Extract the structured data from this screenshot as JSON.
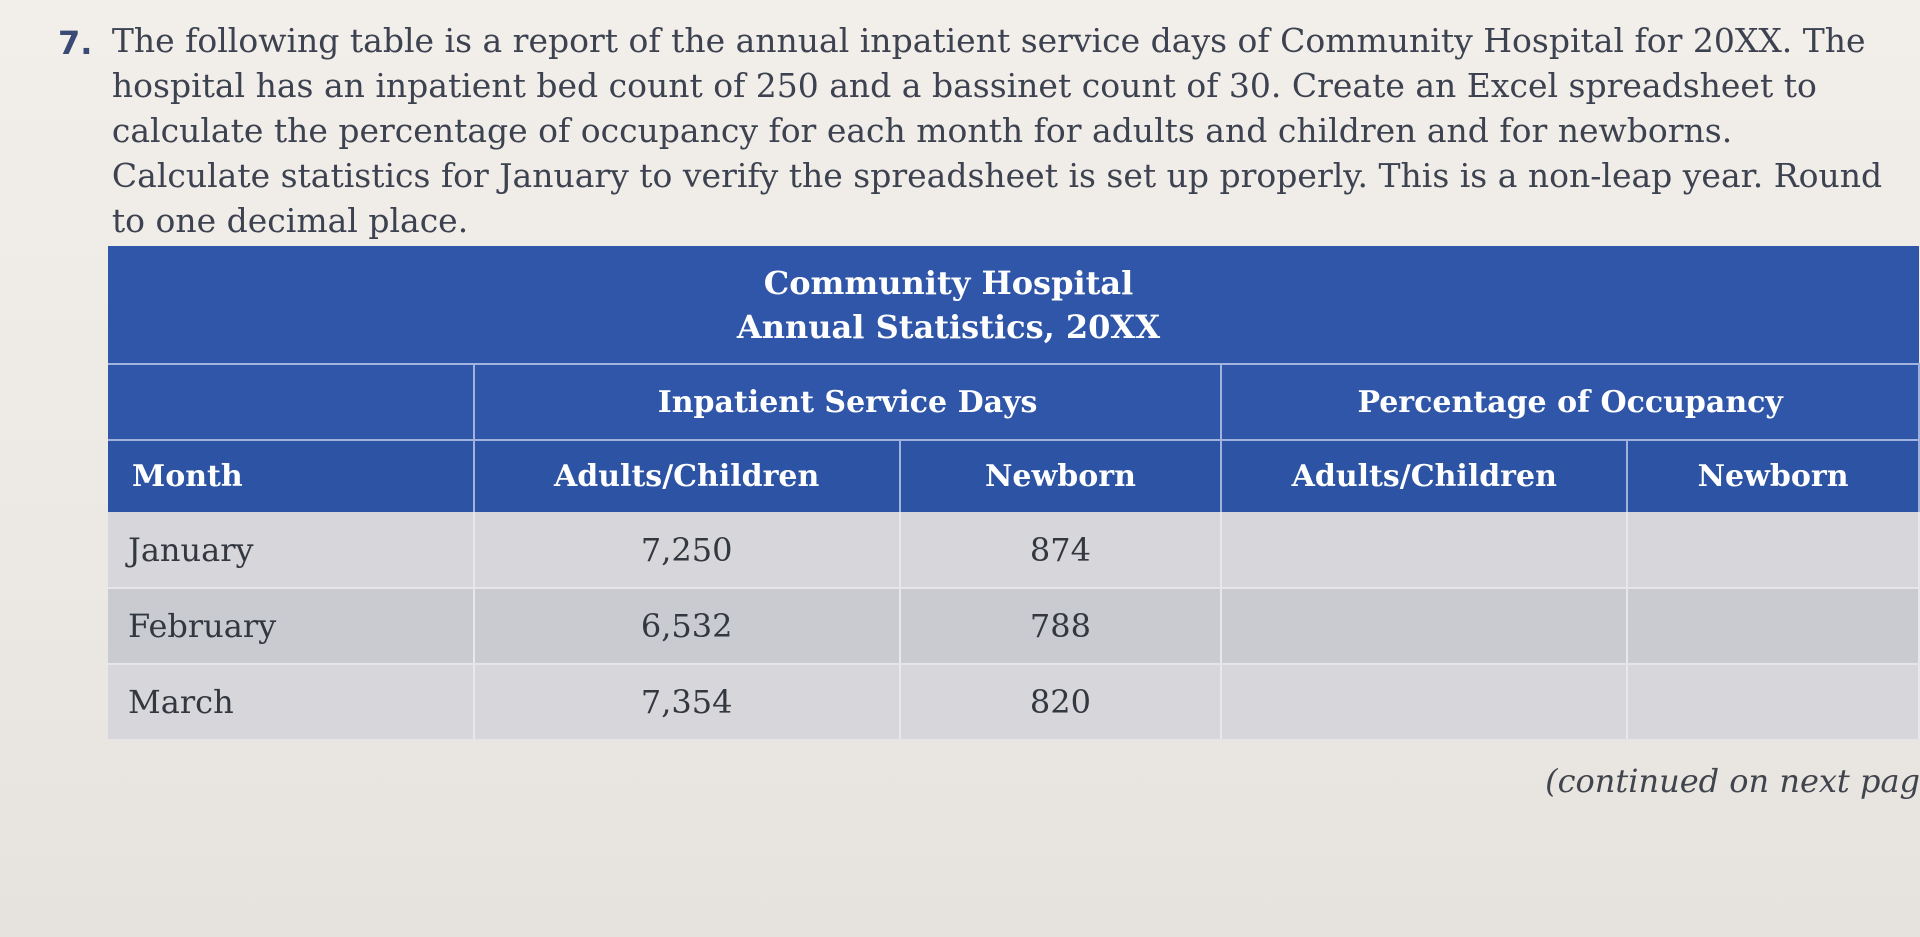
{
  "question": {
    "number": "7.",
    "text": "The following table is a report of the annual inpatient service days of Community Hospital for 20XX. The hospital has an inpatient bed count of 250 and a bassinet count of 30. Create an Excel spreadsheet to calculate the percentage of occupancy for each month for adults and children and for newborns. Calculate statistics for January to verify the spreadsheet is set up properly. This is a non-leap year. Round to one decimal place."
  },
  "table": {
    "title_line1": "Community Hospital",
    "title_line2": "Annual Statistics, 20XX",
    "group_headers": {
      "service_days": "Inpatient Service Days",
      "occupancy": "Percentage of Occupancy"
    },
    "columns": {
      "month": "Month",
      "sd_adults": "Adults/Children",
      "sd_newborn": "Newborn",
      "occ_adults": "Adults/Children",
      "occ_newborn": "Newborn"
    },
    "rows": [
      {
        "month": "January",
        "adults": "7,250",
        "newborn": "874",
        "occ_adults": "",
        "occ_newborn": ""
      },
      {
        "month": "February",
        "adults": "6,532",
        "newborn": "788",
        "occ_adults": "",
        "occ_newborn": ""
      },
      {
        "month": "March",
        "adults": "7,354",
        "newborn": "820",
        "occ_adults": "",
        "occ_newborn": ""
      }
    ]
  },
  "footer": {
    "continued": "(continued on next pag"
  },
  "colors": {
    "header_blue": "#2f56a8",
    "row_light": "#d7d6da",
    "row_dark": "#c9cbd1"
  }
}
